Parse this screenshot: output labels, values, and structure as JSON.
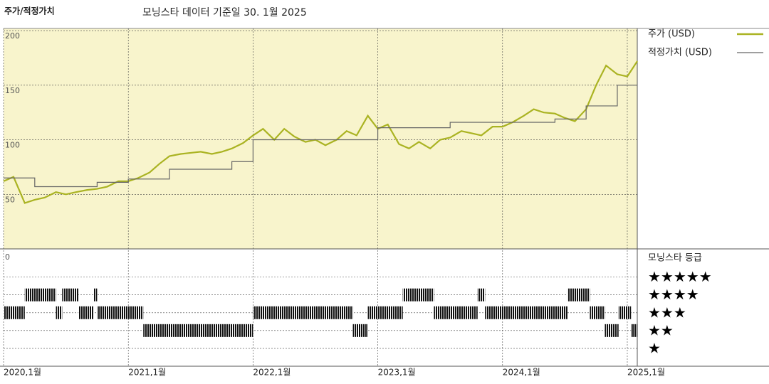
{
  "chart_data": {
    "type": "line",
    "title": "주가/적정가치",
    "subtitle": "모닝스타 데이터 기준일 30. 1월 2025",
    "xlim": [
      2020.0,
      2025.08
    ],
    "xticks": [
      {
        "value": 2020.0,
        "label": "2020,1월"
      },
      {
        "value": 2021.0,
        "label": "2021,1월"
      },
      {
        "value": 2022.0,
        "label": "2022,1월"
      },
      {
        "value": 2023.0,
        "label": "2023,1월"
      },
      {
        "value": 2024.0,
        "label": "2024,1월"
      },
      {
        "value": 2025.0,
        "label": "2025,1월"
      }
    ],
    "ylim": [
      0,
      202
    ],
    "yticks": [
      50,
      100,
      150,
      200
    ],
    "grid": true,
    "series": [
      {
        "name": "주가 (USD)",
        "color": "#aab322",
        "step": false,
        "x": [
          2020.0,
          2020.08,
          2020.17,
          2020.25,
          2020.33,
          2020.42,
          2020.5,
          2020.58,
          2020.67,
          2020.75,
          2020.83,
          2020.92,
          2021.0,
          2021.08,
          2021.17,
          2021.25,
          2021.33,
          2021.42,
          2021.5,
          2021.58,
          2021.67,
          2021.75,
          2021.83,
          2021.92,
          2022.0,
          2022.08,
          2022.17,
          2022.25,
          2022.33,
          2022.42,
          2022.5,
          2022.58,
          2022.67,
          2022.75,
          2022.83,
          2022.92,
          2023.0,
          2023.08,
          2023.17,
          2023.25,
          2023.33,
          2023.42,
          2023.5,
          2023.58,
          2023.67,
          2023.75,
          2023.83,
          2023.92,
          2024.0,
          2024.08,
          2024.17,
          2024.25,
          2024.33,
          2024.42,
          2024.5,
          2024.58,
          2024.67,
          2024.75,
          2024.83,
          2024.92,
          2025.0,
          2025.08
        ],
        "values": [
          62,
          66,
          42,
          45,
          47,
          52,
          50,
          52,
          54,
          55,
          57,
          62,
          62,
          65,
          70,
          78,
          85,
          87,
          88,
          89,
          87,
          89,
          92,
          97,
          104,
          110,
          100,
          110,
          103,
          98,
          100,
          95,
          100,
          108,
          104,
          122,
          110,
          114,
          96,
          92,
          98,
          92,
          100,
          102,
          108,
          106,
          104,
          112,
          112,
          116,
          122,
          128,
          125,
          124,
          120,
          117,
          128,
          150,
          168,
          160,
          158,
          172
        ]
      },
      {
        "name": "적정가치 (USD)",
        "color": "#666666",
        "step": true,
        "x": [
          2020.0,
          2020.25,
          2020.75,
          2021.0,
          2021.33,
          2021.83,
          2022.0,
          2023.0,
          2023.58,
          2024.42,
          2024.67,
          2024.92
        ],
        "values": [
          65,
          57,
          61,
          64,
          73,
          80,
          100,
          111,
          116,
          119,
          131,
          150
        ]
      }
    ],
    "rating_title": "모닝스타 등급",
    "rating_axis_label": "0",
    "rating_ylim": [
      0,
      6.5
    ],
    "rating_ticks": [
      {
        "value": 5,
        "label": "★★★★★"
      },
      {
        "value": 4,
        "label": "★★★★"
      },
      {
        "value": 3,
        "label": "★★★"
      },
      {
        "value": 2,
        "label": "★★"
      },
      {
        "value": 1,
        "label": "★"
      }
    ],
    "rating": {
      "x": [
        2020.0,
        2020.17,
        2020.42,
        2020.47,
        2020.6,
        2020.72,
        2020.75,
        2021.12,
        2022.0,
        2022.8,
        2022.92,
        2023.2,
        2023.45,
        2023.8,
        2023.86,
        2024.52,
        2024.7,
        2024.82,
        2024.93,
        2025.03
      ],
      "values": [
        3,
        4,
        3,
        4,
        3,
        4,
        3,
        2,
        3,
        2,
        3,
        4,
        3,
        4,
        3,
        4,
        3,
        2,
        3,
        2
      ]
    }
  }
}
